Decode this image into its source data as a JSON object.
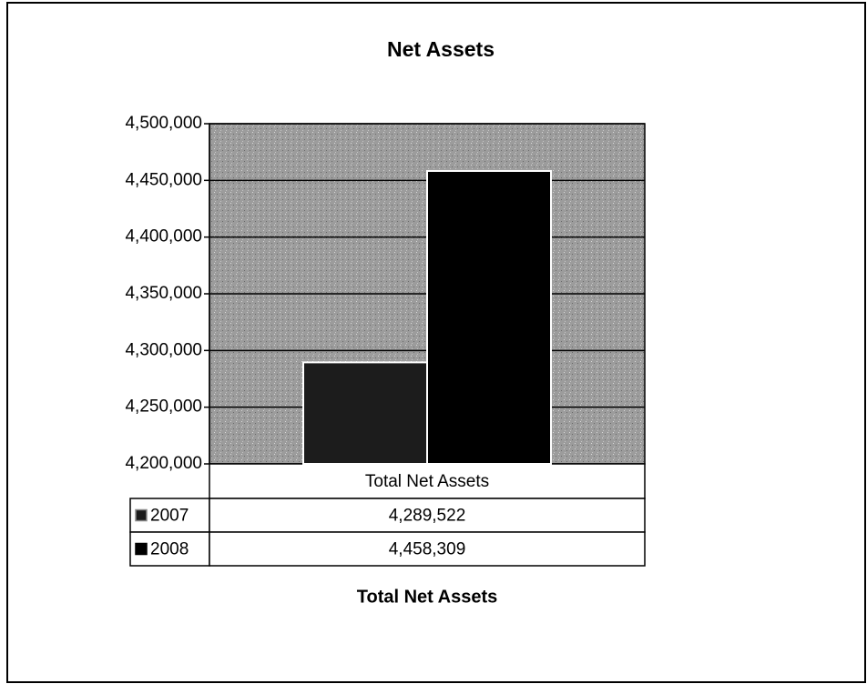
{
  "chart_data": {
    "type": "bar",
    "title": "Net Assets",
    "categories": [
      "Total Net Assets"
    ],
    "series": [
      {
        "name": "2007",
        "color": "#1c1c1c",
        "values": [
          4289522
        ],
        "value_labels": [
          "4,289,522"
        ]
      },
      {
        "name": "2008",
        "color": "#000000",
        "values": [
          4458309
        ],
        "value_labels": [
          "4,458,309"
        ]
      }
    ],
    "x_label": "Total Net Assets",
    "ylim": [
      4200000,
      4500000
    ],
    "yticks": [
      {
        "value": 4200000,
        "label": "4,200,000"
      },
      {
        "value": 4250000,
        "label": "4,250,000"
      },
      {
        "value": 4300000,
        "label": "4,300,000"
      },
      {
        "value": 4350000,
        "label": "4,350,000"
      },
      {
        "value": 4400000,
        "label": "4,400,000"
      },
      {
        "value": 4450000,
        "label": "4,450,000"
      },
      {
        "value": 4500000,
        "label": "4,500,000"
      }
    ],
    "grid": true
  }
}
